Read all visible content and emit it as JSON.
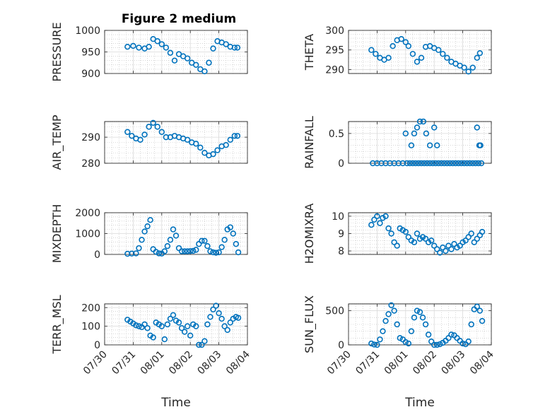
{
  "chart_data": [
    {
      "type": "scatter",
      "title": "Figure 2 medium",
      "ylabel": "PRESSURE",
      "ylim": [
        900,
        1000
      ],
      "yticks": [
        900,
        950,
        1000
      ],
      "xlim": [
        "07/30",
        "08/04"
      ],
      "xticks": [],
      "color": "#0072BD",
      "x": [
        0.8,
        1.0,
        1.2,
        1.4,
        1.55,
        1.7,
        1.85,
        2.0,
        2.15,
        2.3,
        2.45,
        2.6,
        2.75,
        2.9,
        3.05,
        3.2,
        3.35,
        3.5,
        3.65,
        3.8,
        3.95,
        4.1,
        4.25,
        4.4,
        4.55,
        4.65
      ],
      "values": [
        962,
        964,
        960,
        958,
        962,
        980,
        975,
        968,
        960,
        948,
        930,
        945,
        940,
        935,
        925,
        920,
        910,
        905,
        925,
        958,
        975,
        972,
        968,
        962,
        960,
        960
      ]
    },
    {
      "type": "scatter",
      "ylabel": "THETA",
      "ylim": [
        289,
        300
      ],
      "yticks": [
        290,
        295,
        300
      ],
      "xlim": [
        "07/30",
        "08/04"
      ],
      "xticks": [],
      "color": "#0072BD",
      "x": [
        0.8,
        0.95,
        1.1,
        1.25,
        1.4,
        1.55,
        1.7,
        1.85,
        2.0,
        2.1,
        2.25,
        2.4,
        2.55,
        2.7,
        2.85,
        3.0,
        3.15,
        3.3,
        3.45,
        3.6,
        3.75,
        3.9,
        4.05,
        4.2,
        4.35,
        4.5,
        4.6
      ],
      "values": [
        295,
        294,
        293,
        292.5,
        293,
        296,
        297.5,
        297.8,
        297,
        296,
        294,
        292,
        293,
        295.8,
        296,
        295.5,
        295,
        294,
        293,
        292,
        291.5,
        291,
        290.5,
        289.5,
        290.5,
        293,
        294.2
      ]
    },
    {
      "type": "scatter",
      "ylabel": "AIR_TEMP",
      "ylim": [
        280,
        296
      ],
      "yticks": [
        280,
        290
      ],
      "xlim": [
        "07/30",
        "08/04"
      ],
      "xticks": [],
      "color": "#0072BD",
      "x": [
        0.8,
        0.95,
        1.1,
        1.25,
        1.4,
        1.55,
        1.7,
        1.85,
        2.0,
        2.15,
        2.3,
        2.45,
        2.6,
        2.75,
        2.9,
        3.05,
        3.2,
        3.35,
        3.5,
        3.65,
        3.8,
        3.95,
        4.1,
        4.25,
        4.4,
        4.55,
        4.65
      ],
      "values": [
        292,
        290.5,
        289.5,
        289,
        291,
        294,
        295.5,
        294,
        292,
        290,
        290,
        290.5,
        290,
        289.5,
        289,
        288,
        287.5,
        286,
        284,
        283,
        283.5,
        285,
        286.5,
        287,
        289,
        290.5,
        290.5
      ]
    },
    {
      "type": "scatter",
      "ylabel": "RAINFALL",
      "ylim": [
        0,
        0.7
      ],
      "yticks": [
        0,
        0.5
      ],
      "xlim": [
        "07/30",
        "08/04"
      ],
      "xticks": [],
      "color": "#0072BD",
      "x": [
        0.85,
        1.0,
        1.15,
        1.3,
        1.45,
        1.6,
        1.75,
        1.9,
        2.0,
        2.05,
        2.15,
        2.25,
        2.35,
        2.45,
        2.55,
        2.65,
        2.75,
        2.85,
        2.95,
        3.05,
        3.15,
        3.25,
        3.35,
        3.45,
        3.55,
        3.65,
        3.75,
        3.85,
        3.95,
        4.05,
        4.15,
        4.25,
        4.35,
        4.45,
        4.55,
        4.65,
        2.2,
        2.3,
        2.4,
        2.5,
        2.62,
        2.72,
        2.85,
        3.0,
        3.1,
        4.5,
        4.58,
        4.62
      ],
      "values": [
        0,
        0,
        0,
        0,
        0,
        0,
        0,
        0,
        0.5,
        0,
        0,
        0,
        0,
        0,
        0,
        0,
        0,
        0,
        0,
        0,
        0,
        0,
        0,
        0,
        0,
        0,
        0,
        0,
        0,
        0,
        0,
        0,
        0,
        0,
        0,
        0,
        0.3,
        0.5,
        0.6,
        0.7,
        0.7,
        0.5,
        0.3,
        0.6,
        0.3,
        0.6,
        0.3,
        0.3
      ]
    },
    {
      "type": "scatter",
      "ylabel": "MIXDEPTH",
      "ylim": [
        0,
        2000
      ],
      "yticks": [
        0,
        1000,
        2000
      ],
      "xlim": [
        "07/30",
        "08/04"
      ],
      "xticks": [],
      "color": "#0072BD",
      "x": [
        0.8,
        0.95,
        1.1,
        1.2,
        1.3,
        1.4,
        1.5,
        1.6,
        1.7,
        1.8,
        1.9,
        2.0,
        2.1,
        2.2,
        2.3,
        2.4,
        2.5,
        2.6,
        2.7,
        2.8,
        2.9,
        3.0,
        3.1,
        3.2,
        3.3,
        3.4,
        3.5,
        3.6,
        3.7,
        3.8,
        3.9,
        4.0,
        4.1,
        4.2,
        4.3,
        4.4,
        4.5,
        4.6,
        4.68
      ],
      "values": [
        30,
        40,
        50,
        300,
        700,
        1100,
        1350,
        1650,
        250,
        120,
        50,
        40,
        150,
        400,
        700,
        1200,
        900,
        300,
        150,
        150,
        150,
        160,
        170,
        220,
        500,
        650,
        650,
        400,
        150,
        100,
        80,
        100,
        350,
        700,
        1200,
        1300,
        1000,
        500,
        100
      ]
    },
    {
      "type": "scatter",
      "ylabel": "H2OMIXRA",
      "ylim": [
        7.8,
        10.2
      ],
      "yticks": [
        8,
        9,
        10
      ],
      "xlim": [
        "07/30",
        "08/04"
      ],
      "xticks": [],
      "color": "#0072BD",
      "x": [
        0.8,
        0.9,
        1.0,
        1.1,
        1.2,
        1.3,
        1.4,
        1.5,
        1.6,
        1.7,
        1.8,
        1.9,
        2.0,
        2.1,
        2.2,
        2.3,
        2.4,
        2.5,
        2.6,
        2.7,
        2.8,
        2.9,
        3.0,
        3.1,
        3.2,
        3.3,
        3.4,
        3.5,
        3.6,
        3.7,
        3.8,
        3.9,
        4.0,
        4.1,
        4.2,
        4.3,
        4.4,
        4.5,
        4.6,
        4.68
      ],
      "values": [
        9.5,
        9.8,
        10,
        9.6,
        9.9,
        10,
        9.3,
        9,
        8.5,
        8.3,
        9.3,
        9.2,
        9.1,
        8.8,
        8.6,
        8.5,
        9,
        8.7,
        8.8,
        8.7,
        8.5,
        8.6,
        8.3,
        8.1,
        7.9,
        8.2,
        8,
        8.3,
        8.1,
        8.4,
        8.2,
        8.3,
        8.5,
        8.6,
        8.8,
        9,
        8.5,
        8.7,
        8.9,
        9.1
      ]
    },
    {
      "type": "scatter",
      "ylabel": "TERR_MSL",
      "ylim": [
        0,
        220
      ],
      "yticks": [
        0,
        100,
        200
      ],
      "xlim": [
        "07/30",
        "08/04"
      ],
      "xticks": [
        "07/30",
        "07/31",
        "08/01",
        "08/02",
        "08/03",
        "08/04"
      ],
      "xlabel": "Time",
      "color": "#0072BD",
      "x": [
        0.8,
        0.9,
        1.0,
        1.1,
        1.2,
        1.3,
        1.4,
        1.5,
        1.6,
        1.7,
        1.8,
        1.9,
        2.0,
        2.1,
        2.2,
        2.3,
        2.4,
        2.5,
        2.6,
        2.7,
        2.8,
        2.9,
        3.0,
        3.1,
        3.2,
        3.3,
        3.4,
        3.5,
        3.6,
        3.7,
        3.8,
        3.9,
        4.0,
        4.1,
        4.2,
        4.3,
        4.4,
        4.5,
        4.6,
        4.68
      ],
      "values": [
        135,
        125,
        115,
        105,
        100,
        95,
        110,
        90,
        50,
        40,
        120,
        110,
        100,
        30,
        110,
        140,
        160,
        130,
        120,
        90,
        70,
        100,
        50,
        110,
        100,
        0,
        0,
        20,
        110,
        150,
        190,
        210,
        170,
        140,
        100,
        80,
        120,
        140,
        150,
        145
      ]
    },
    {
      "type": "scatter",
      "ylabel": "SUN_FLUX",
      "ylim": [
        0,
        600
      ],
      "yticks": [
        0,
        500
      ],
      "xlim": [
        "07/30",
        "08/04"
      ],
      "xticks": [
        "07/30",
        "07/31",
        "08/01",
        "08/02",
        "08/03",
        "08/04"
      ],
      "xlabel": "Time",
      "color": "#0072BD",
      "x": [
        0.8,
        0.9,
        1.0,
        1.1,
        1.2,
        1.3,
        1.4,
        1.5,
        1.6,
        1.7,
        1.8,
        1.9,
        2.0,
        2.1,
        2.2,
        2.3,
        2.4,
        2.5,
        2.6,
        2.7,
        2.8,
        2.9,
        3.0,
        3.1,
        3.2,
        3.3,
        3.4,
        3.5,
        3.6,
        3.7,
        3.8,
        3.9,
        4.0,
        4.1,
        4.2,
        4.3,
        4.4,
        4.5,
        4.6,
        4.68
      ],
      "values": [
        20,
        5,
        0,
        80,
        200,
        350,
        450,
        580,
        500,
        300,
        100,
        80,
        40,
        20,
        200,
        400,
        500,
        480,
        400,
        300,
        150,
        50,
        0,
        0,
        10,
        30,
        60,
        100,
        150,
        140,
        100,
        60,
        20,
        10,
        50,
        300,
        520,
        560,
        500,
        350
      ]
    }
  ]
}
